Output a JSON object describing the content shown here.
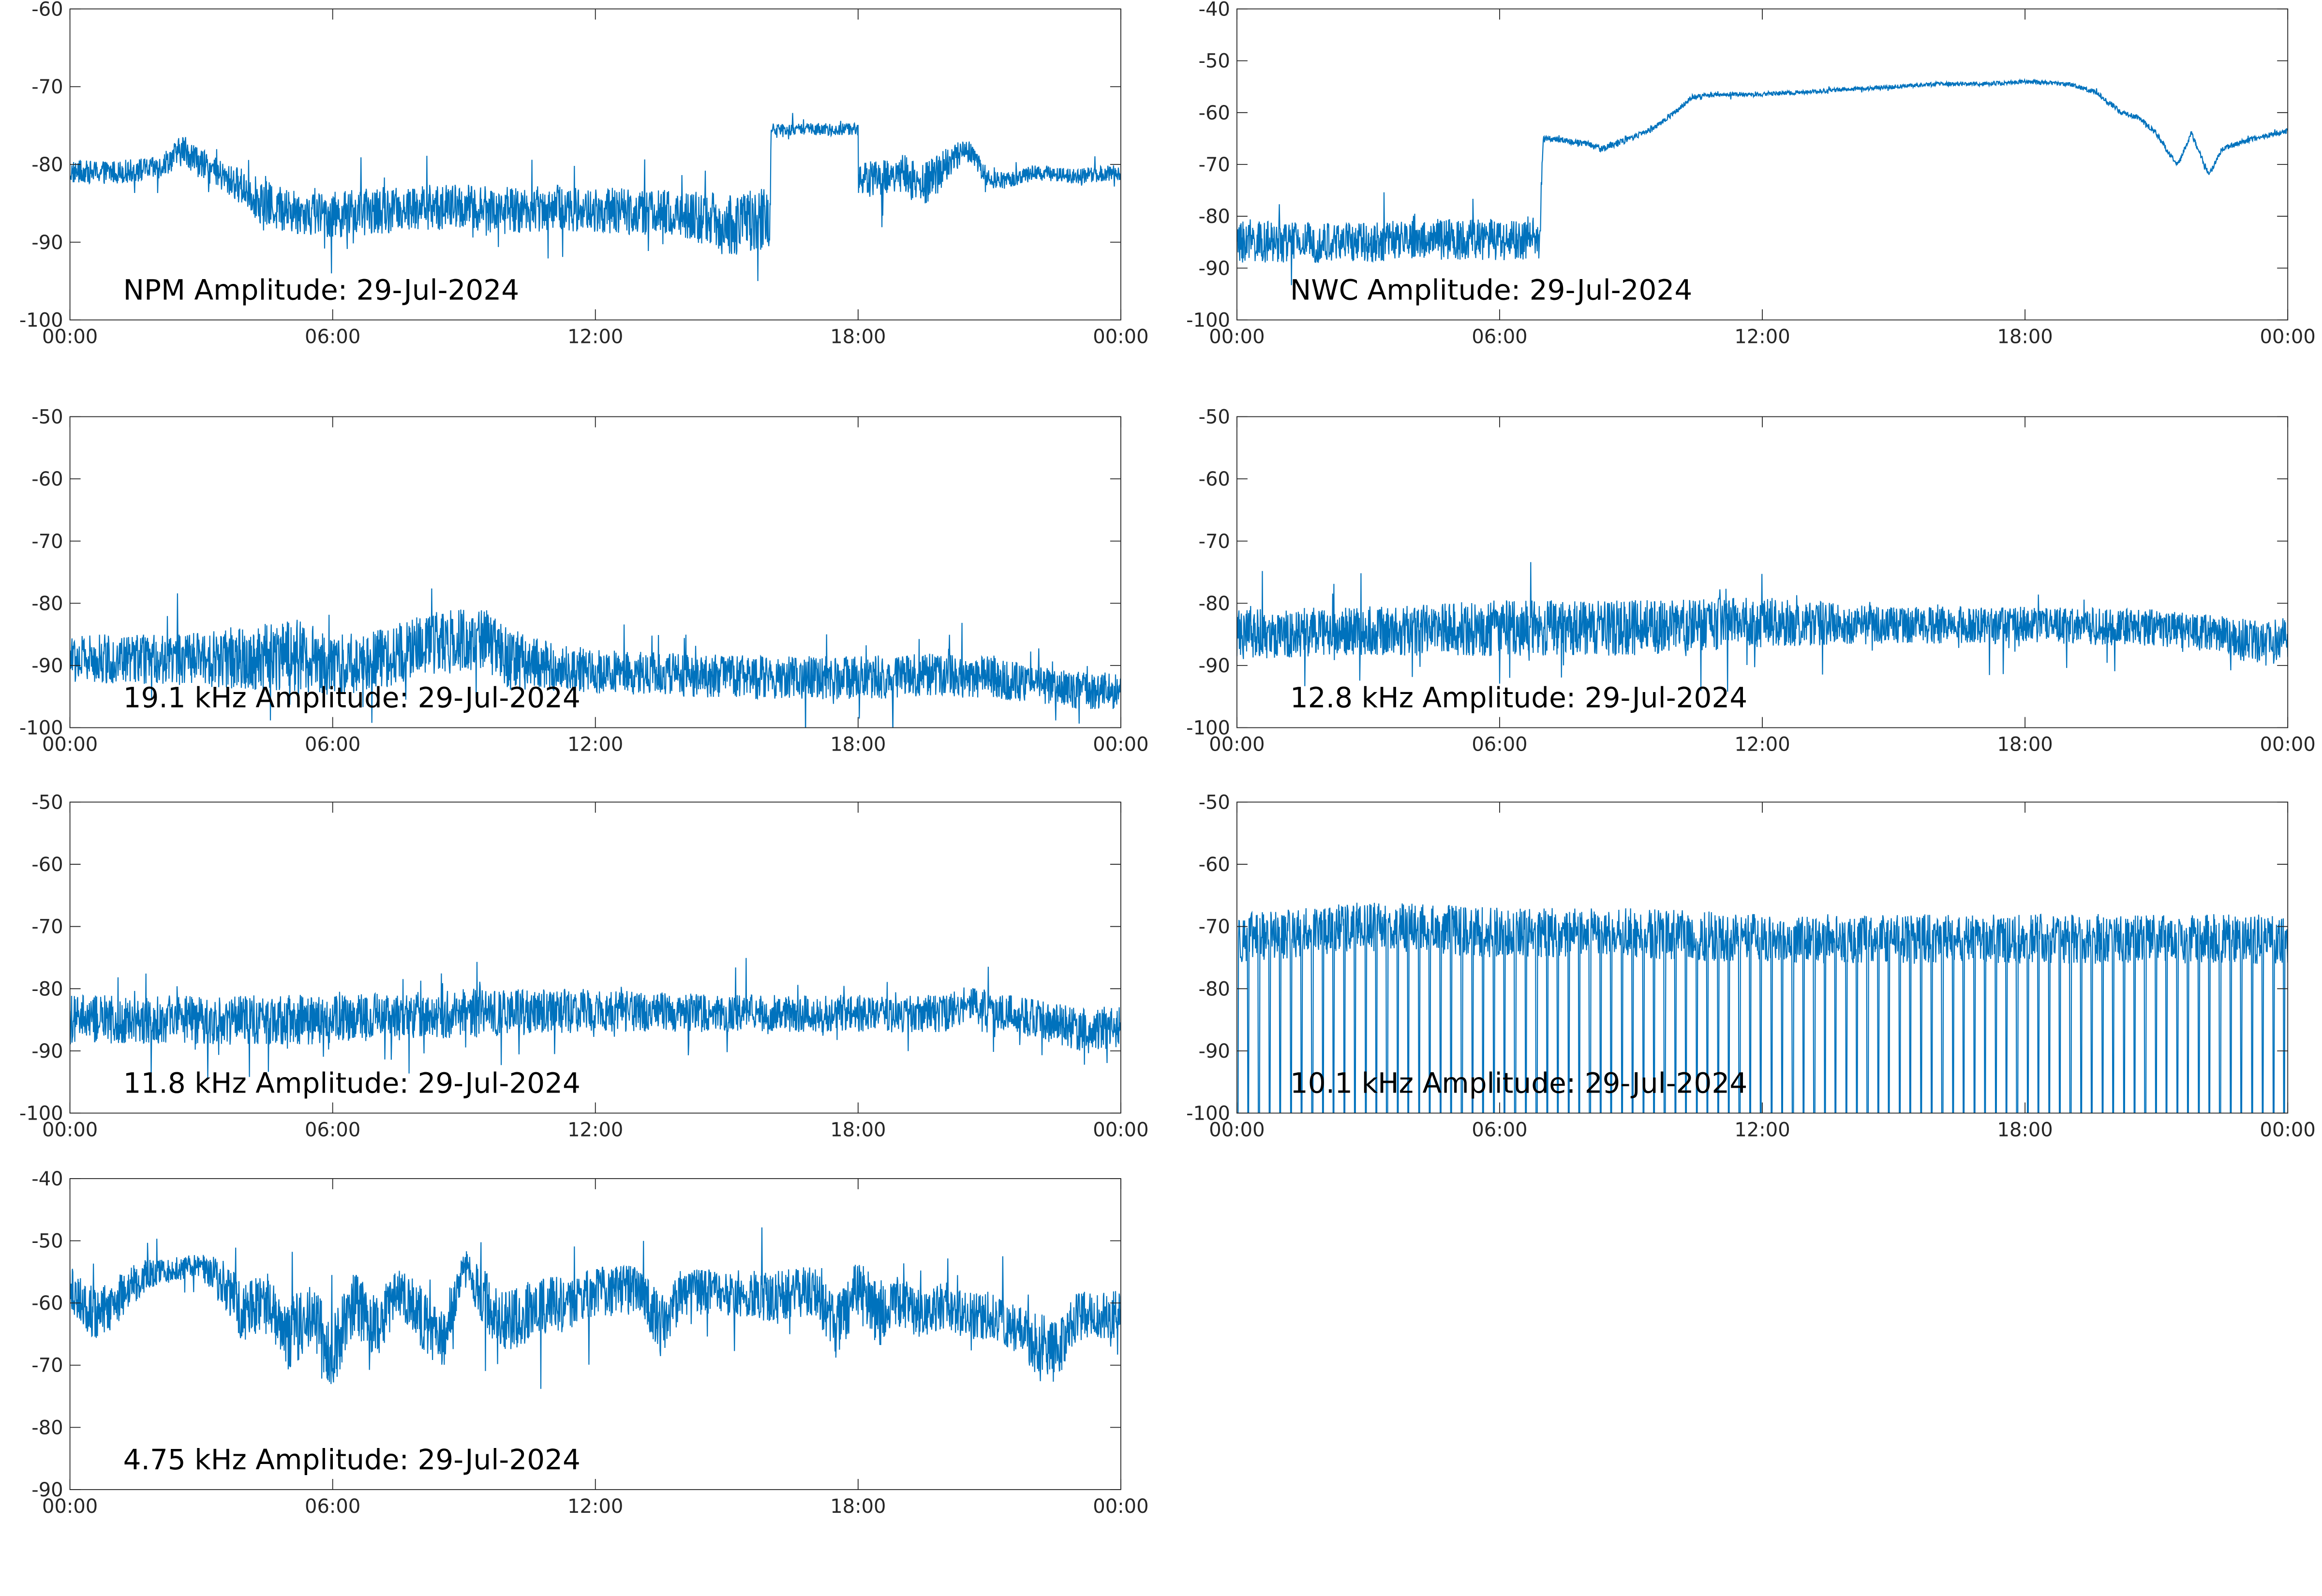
{
  "chart_data": [
    {
      "type": "line",
      "annotation": "NPM Amplitude: 29-Jul-2024",
      "x_ticks": [
        "00:00",
        "06:00",
        "12:00",
        "18:00",
        "00:00"
      ],
      "xlim": [
        0,
        24
      ],
      "ylim": [
        -100,
        -60
      ],
      "y_ticks": [
        -60,
        -70,
        -80,
        -90,
        -100
      ],
      "grid": false,
      "color": "#0072BD",
      "series": [
        {
          "x": [
            0,
            1,
            2,
            2.6,
            3,
            3.6,
            4,
            4.4,
            5,
            6,
            7,
            8,
            9,
            10,
            11,
            12,
            13,
            14,
            14.6,
            15,
            15.6,
            16,
            16.01,
            17,
            17.9,
            18,
            18.01,
            19,
            19.5,
            20,
            20.5,
            21,
            21.5,
            22,
            23,
            24
          ],
          "values": [
            -81,
            -81,
            -80.5,
            -78,
            -80,
            -82,
            -83,
            -85,
            -86,
            -86.5,
            -86,
            -85.5,
            -85.5,
            -86,
            -85.5,
            -86,
            -86,
            -86.5,
            -87,
            -88,
            -87,
            -87,
            -75.5,
            -75.5,
            -75.5,
            -75.5,
            -82,
            -81,
            -83,
            -80,
            -78,
            -82,
            -82,
            -81,
            -81.5,
            -81
          ],
          "noise": [
            1.5,
            1.5,
            1.5,
            2,
            2,
            2,
            2.5,
            3,
            3,
            3,
            3,
            3,
            3,
            3,
            3,
            3,
            3,
            3,
            3.5,
            4,
            4,
            4,
            0.8,
            0.8,
            0.8,
            0.8,
            2.5,
            2.5,
            3,
            2.5,
            1.5,
            1.2,
            1,
            1,
            1,
            1
          ]
        }
      ]
    },
    {
      "type": "line",
      "annotation": "NWC Amplitude: 29-Jul-2024",
      "x_ticks": [
        "00:00",
        "06:00",
        "12:00",
        "18:00",
        "00:00"
      ],
      "xlim": [
        0,
        24
      ],
      "ylim": [
        -100,
        -40
      ],
      "y_ticks": [
        -40,
        -50,
        -60,
        -70,
        -80,
        -90,
        -100
      ],
      "grid": false,
      "color": "#0072BD",
      "series": [
        {
          "x": [
            0,
            1,
            2,
            3,
            4,
            5,
            6,
            6.9,
            7.0,
            7.2,
            8,
            8.3,
            9,
            9.5,
            10,
            10.4,
            11,
            12,
            13,
            14,
            15,
            16,
            17,
            18,
            19,
            19.6,
            20.2,
            20.6,
            21,
            21.3,
            21.5,
            21.8,
            22,
            22.2,
            22.5,
            23,
            24
          ],
          "values": [
            -85,
            -85,
            -85,
            -85,
            -84.5,
            -84.5,
            -84.5,
            -85,
            -65,
            -65,
            -66,
            -67,
            -65,
            -63,
            -60,
            -57,
            -56.5,
            -56.5,
            -56,
            -55.5,
            -55,
            -54.5,
            -54.5,
            -54,
            -54.5,
            -56,
            -60,
            -61,
            -64,
            -68,
            -70,
            -64,
            -68,
            -72,
            -67,
            -65.5,
            -63.5
          ],
          "noise": [
            4,
            4,
            4,
            4,
            4,
            4,
            4,
            4,
            0.6,
            0.6,
            0.6,
            0.6,
            0.6,
            0.6,
            0.5,
            0.5,
            0.4,
            0.4,
            0.4,
            0.4,
            0.4,
            0.4,
            0.4,
            0.4,
            0.4,
            0.5,
            0.5,
            0.5,
            0.5,
            0.5,
            0.5,
            0.5,
            0.5,
            0.5,
            0.5,
            0.5,
            0.5
          ]
        }
      ]
    },
    {
      "type": "line",
      "annotation": "19.1 kHz Amplitude: 29-Jul-2024",
      "x_ticks": [
        "00:00",
        "06:00",
        "12:00",
        "18:00",
        "00:00"
      ],
      "xlim": [
        0,
        24
      ],
      "ylim": [
        -100,
        -50
      ],
      "y_ticks": [
        -50,
        -60,
        -70,
        -80,
        -90,
        -100
      ],
      "grid": false,
      "color": "#0072BD",
      "series": [
        {
          "x": [
            0,
            2,
            4,
            5,
            6,
            7,
            8.5,
            9.5,
            10,
            11,
            12,
            14,
            16,
            18,
            20,
            21,
            22,
            23,
            24
          ],
          "values": [
            -89,
            -89,
            -89,
            -88,
            -90,
            -89,
            -86,
            -86,
            -89,
            -90,
            -91,
            -91.5,
            -92,
            -92,
            -91.5,
            -92,
            -93,
            -94,
            -94
          ],
          "noise": [
            4,
            4,
            5,
            6,
            5,
            5,
            5,
            5,
            5,
            4,
            3.5,
            3.5,
            3.5,
            3.5,
            3.5,
            3.5,
            3,
            3,
            3
          ]
        }
      ]
    },
    {
      "type": "line",
      "annotation": "12.8 kHz Amplitude: 29-Jul-2024",
      "x_ticks": [
        "00:00",
        "06:00",
        "12:00",
        "18:00",
        "00:00"
      ],
      "xlim": [
        0,
        24
      ],
      "ylim": [
        -100,
        -50
      ],
      "y_ticks": [
        -50,
        -60,
        -70,
        -80,
        -90,
        -100
      ],
      "grid": false,
      "color": "#0072BD",
      "series": [
        {
          "x": [
            0,
            3,
            6,
            9,
            12,
            15,
            18,
            21,
            22.5,
            23.5,
            24
          ],
          "values": [
            -85,
            -84.5,
            -84,
            -84,
            -83,
            -83.5,
            -83.5,
            -84,
            -85,
            -87,
            -85
          ],
          "noise": [
            4,
            4,
            4.5,
            4.5,
            4,
            3,
            3,
            3,
            3,
            4,
            3
          ]
        }
      ]
    },
    {
      "type": "line",
      "annotation": "11.8 kHz Amplitude: 29-Jul-2024",
      "x_ticks": [
        "00:00",
        "06:00",
        "12:00",
        "18:00",
        "00:00"
      ],
      "xlim": [
        0,
        24
      ],
      "ylim": [
        -100,
        -50
      ],
      "y_ticks": [
        -50,
        -60,
        -70,
        -80,
        -90,
        -100
      ],
      "grid": false,
      "color": "#0072BD",
      "series": [
        {
          "x": [
            0,
            3,
            6,
            9,
            12,
            15,
            18,
            20,
            20.5,
            21.5,
            23,
            24
          ],
          "values": [
            -85,
            -85,
            -85,
            -84,
            -83.5,
            -84,
            -84,
            -84,
            -82.5,
            -84,
            -86.5,
            -86
          ],
          "noise": [
            4,
            4,
            4,
            4,
            3.5,
            3,
            3,
            3,
            3,
            3,
            3.5,
            3.5
          ]
        }
      ]
    },
    {
      "type": "line",
      "annotation": "10.1 kHz Amplitude: 29-Jul-2024",
      "x_ticks": [
        "00:00",
        "06:00",
        "12:00",
        "18:00",
        "00:00"
      ],
      "xlim": [
        0,
        24
      ],
      "ylim": [
        -100,
        -50
      ],
      "y_ticks": [
        -50,
        -60,
        -70,
        -80,
        -90,
        -100
      ],
      "grid": false,
      "color": "#0072BD",
      "series": [
        {
          "x": [
            0,
            3,
            6,
            9,
            12,
            15,
            18,
            21,
            24
          ],
          "values": [
            -72,
            -70,
            -71,
            -71,
            -72,
            -72,
            -72,
            -72,
            -72
          ],
          "noise": [
            4,
            4,
            4,
            4,
            4,
            4,
            4,
            4,
            4
          ]
        }
      ]
    },
    {
      "type": "line",
      "annotation": "4.75 kHz Amplitude: 29-Jul-2024",
      "x_ticks": [
        "00:00",
        "06:00",
        "12:00",
        "18:00",
        "00:00"
      ],
      "xlim": [
        0,
        24
      ],
      "ylim": [
        -90,
        -40
      ],
      "y_ticks": [
        -40,
        -50,
        -60,
        -70,
        -80,
        -90
      ],
      "grid": false,
      "color": "#0072BD",
      "series": [
        {
          "x": [
            0,
            0.6,
            1,
            1.6,
            2,
            3,
            3.5,
            4,
            4.5,
            5,
            5.5,
            6,
            6.5,
            7,
            7.5,
            8,
            8.5,
            9,
            9.5,
            10,
            11,
            11.5,
            12,
            13,
            13.5,
            14,
            15,
            16,
            17,
            17.5,
            18,
            18.5,
            19,
            19.5,
            20,
            20.5,
            21,
            21.5,
            22,
            22.5,
            23,
            24
          ],
          "values": [
            -58,
            -62,
            -60,
            -56,
            -55,
            -54,
            -57,
            -62,
            -60,
            -65,
            -62,
            -68,
            -60,
            -64,
            -58,
            -62,
            -66,
            -54,
            -60,
            -63,
            -60,
            -60,
            -58,
            -58,
            -64,
            -58,
            -58,
            -59,
            -58,
            -64,
            -58,
            -62,
            -60,
            -62,
            -60,
            -62,
            -62,
            -64,
            -66,
            -68,
            -62,
            -62
          ],
          "noise": [
            4,
            4,
            4,
            3,
            2,
            2,
            4,
            5,
            5,
            6,
            5,
            6,
            5,
            5,
            4,
            5,
            5,
            3,
            5,
            5,
            5,
            4,
            4,
            4,
            5,
            4,
            4,
            4,
            4,
            5,
            5,
            5,
            4,
            4,
            4,
            4,
            4,
            4,
            5,
            5,
            4,
            4
          ]
        }
      ]
    }
  ]
}
